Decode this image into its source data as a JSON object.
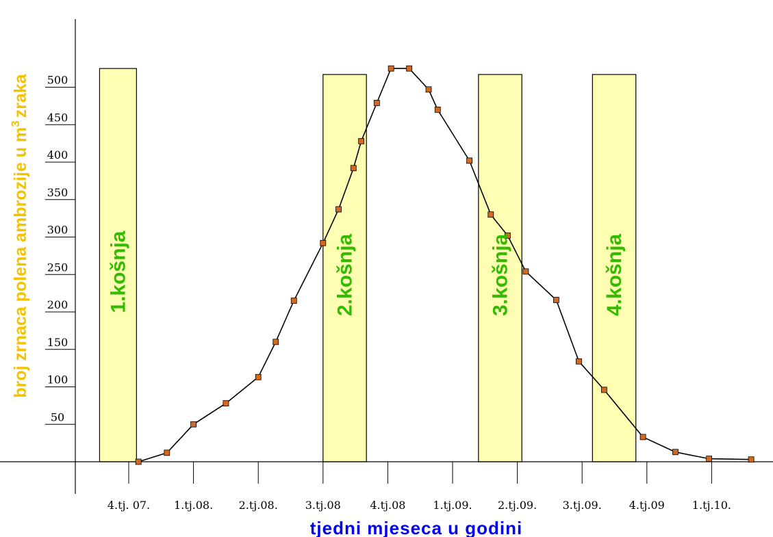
{
  "chart_data": {
    "type": "line",
    "title": "",
    "xlabel": "tjedni mjeseca u godini",
    "ylabel_main": "broj zrnaca polena ambrozije u m",
    "ylabel_sup": "3",
    "ylabel_tail": "zraka",
    "ylim": [
      0,
      500
    ],
    "yticks": [
      50,
      100,
      150,
      200,
      250,
      300,
      350,
      400,
      450,
      500
    ],
    "x_categories": [
      "4.tj. 07.",
      "1.tj.08.",
      "2.tj.08.",
      "3.tj.08",
      "4.tj.08",
      "1.tj.09.",
      "2.tj.09.",
      "3.tj.09.",
      "4.tj.09",
      "1.tj.10."
    ],
    "xlim": [
      -0.8,
      9.9
    ],
    "grid": false,
    "series": [
      {
        "name": "",
        "color": "#000000",
        "marker_color": "#d2691e",
        "x": [
          0.15,
          0.59,
          1.0,
          1.5,
          2.0,
          2.27,
          2.55,
          3.0,
          3.24,
          3.47,
          3.59,
          3.83,
          4.05,
          4.33,
          4.63,
          4.77,
          5.26,
          5.59,
          5.85,
          6.13,
          6.6,
          6.95,
          7.34,
          7.94,
          8.44,
          8.96,
          9.61
        ],
        "y": [
          0,
          12,
          50,
          78,
          113,
          160,
          215,
          292,
          337,
          392,
          428,
          479,
          525,
          525,
          497,
          470,
          402,
          330,
          302,
          254,
          216,
          134,
          96,
          33,
          13,
          4,
          3
        ]
      }
    ],
    "bars": [
      {
        "label": "1.košnja",
        "x_start": -0.45,
        "x_end": 0.12,
        "value": 525
      },
      {
        "label": "2.košnja",
        "x_start": 3.0,
        "x_end": 3.67,
        "value": 517
      },
      {
        "label": "3.košnja",
        "x_start": 5.4,
        "x_end": 6.07,
        "value": 517
      },
      {
        "label": "4.košnja",
        "x_start": 7.16,
        "x_end": 7.83,
        "value": 517
      }
    ],
    "colors": {
      "bar_fill": "#ffffb3",
      "bar_label": "#33bb00",
      "ylabel": "#f5c200",
      "xlabel": "#0000ee"
    }
  }
}
